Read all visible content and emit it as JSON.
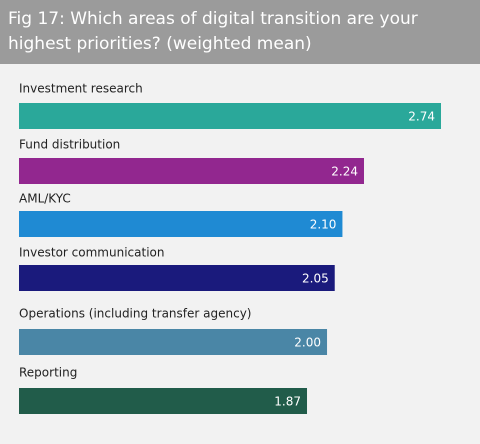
{
  "chart_data": {
    "type": "bar",
    "orientation": "horizontal",
    "title": "Fig 17: Which areas of digital transition are your highest priorities? (weighted mean)",
    "categories": [
      "Investment research",
      "Fund distribution",
      "AML/KYC",
      "Investor communication",
      "Operations (including transfer agency)",
      "Reporting"
    ],
    "values": [
      2.74,
      2.24,
      2.1,
      2.05,
      2,
      1.87
    ],
    "value_labels": [
      "2.74",
      "2.24",
      "2.10",
      "2.05",
      "2.00",
      "1.87"
    ],
    "colors": [
      "#2aa89a",
      "#92278f",
      "#1f8ad3",
      "#1a1a7c",
      "#4a86a6",
      "#215c4a"
    ]
  }
}
